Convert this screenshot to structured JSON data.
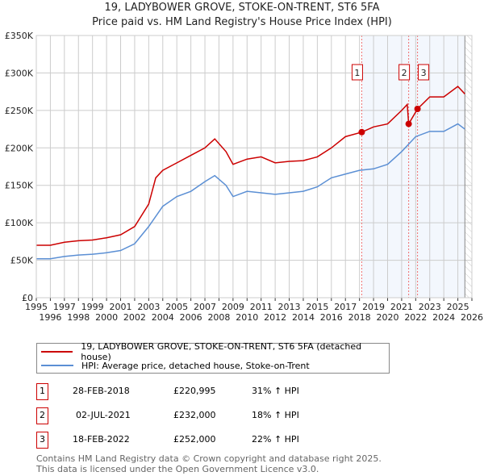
{
  "chart_data": {
    "type": "line",
    "title": "19, LADYBOWER GROVE, STOKE-ON-TRENT, ST6 5FA",
    "subtitle": "Price paid vs. HM Land Registry's House Price Index (HPI)",
    "xlim": [
      1995,
      2026
    ],
    "ylim": [
      0,
      350000
    ],
    "x_ticks": [
      "1995",
      "1996",
      "1997",
      "1998",
      "1999",
      "2000",
      "2001",
      "2002",
      "2003",
      "2004",
      "2005",
      "2006",
      "2007",
      "2008",
      "2009",
      "2010",
      "2011",
      "2012",
      "2013",
      "2014",
      "2015",
      "2016",
      "2017",
      "2018",
      "2019",
      "2020",
      "2021",
      "2022",
      "2023",
      "2024",
      "2025",
      "2026"
    ],
    "y_ticks": [
      {
        "v": 0,
        "label": "£0"
      },
      {
        "v": 50000,
        "label": "£50K"
      },
      {
        "v": 100000,
        "label": "£100K"
      },
      {
        "v": 150000,
        "label": "£150K"
      },
      {
        "v": 200000,
        "label": "£200K"
      },
      {
        "v": 250000,
        "label": "£250K"
      },
      {
        "v": 300000,
        "label": "£300K"
      },
      {
        "v": 350000,
        "label": "£350K"
      }
    ],
    "grid": true,
    "series": [
      {
        "name": "19, LADYBOWER GROVE, STOKE-ON-TRENT, ST6 5FA (detached house)",
        "color": "#cc0000",
        "x": [
          1995,
          1996,
          1997,
          1998,
          1999,
          2000,
          2001,
          2002,
          2003,
          2003.5,
          2004,
          2005,
          2006,
          2007,
          2007.7,
          2008.5,
          2009,
          2010,
          2011,
          2012,
          2013,
          2014,
          2015,
          2016,
          2017,
          2018.16,
          2019,
          2020,
          2021,
          2021.4,
          2021.5,
          2022.13,
          2023,
          2024,
          2025,
          2025.5
        ],
        "y": [
          70000,
          70000,
          74000,
          76000,
          77000,
          80000,
          84000,
          95000,
          125000,
          160000,
          170000,
          180000,
          190000,
          200000,
          212000,
          195000,
          178000,
          185000,
          188000,
          180000,
          182000,
          183000,
          188000,
          200000,
          215000,
          220995,
          228000,
          232000,
          250000,
          258000,
          232000,
          252000,
          268000,
          268000,
          282000,
          272000
        ]
      },
      {
        "name": "HPI: Average price, detached house, Stoke-on-Trent",
        "color": "#5b8fd4",
        "x": [
          1995,
          1996,
          1997,
          1998,
          1999,
          2000,
          2001,
          2002,
          2003,
          2004,
          2005,
          2006,
          2007,
          2007.7,
          2008.5,
          2009,
          2010,
          2011,
          2012,
          2013,
          2014,
          2015,
          2016,
          2017,
          2018,
          2019,
          2020,
          2021,
          2022,
          2023,
          2024,
          2025,
          2025.5
        ],
        "y": [
          52000,
          52000,
          55000,
          57000,
          58000,
          60000,
          63000,
          72000,
          95000,
          122000,
          135000,
          142000,
          155000,
          163000,
          150000,
          135000,
          142000,
          140000,
          138000,
          140000,
          142000,
          148000,
          160000,
          165000,
          170000,
          172000,
          178000,
          195000,
          215000,
          222000,
          222000,
          232000,
          225000
        ]
      }
    ],
    "transactions": [
      {
        "id": "1",
        "x": 2018.16,
        "date": "28-FEB-2018",
        "price": 220995,
        "price_label": "£220,995",
        "hpi": "31% ↑ HPI"
      },
      {
        "id": "2",
        "x": 2021.5,
        "date": "02-JUL-2021",
        "price": 232000,
        "price_label": "£232,000",
        "hpi": "18% ↑ HPI"
      },
      {
        "id": "3",
        "x": 2022.13,
        "date": "18-FEB-2022",
        "price": 252000,
        "price_label": "£252,000",
        "hpi": "22% ↑ HPI"
      }
    ],
    "shade_from": 2018.16,
    "data_end": 2025.5,
    "legend_placement": "below"
  },
  "footer": {
    "line1": "Contains HM Land Registry data © Crown copyright and database right 2025.",
    "line2": "This data is licensed under the Open Government Licence v3.0."
  }
}
